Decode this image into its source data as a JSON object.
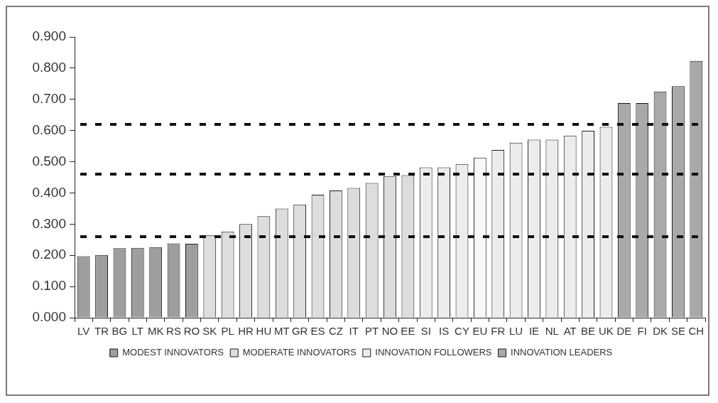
{
  "chart_data": {
    "type": "bar",
    "categories": [
      "LV",
      "TR",
      "BG",
      "LT",
      "MK",
      "RS",
      "RO",
      "SK",
      "PL",
      "HR",
      "HU",
      "MT",
      "GR",
      "ES",
      "CZ",
      "IT",
      "PT",
      "NO",
      "EE",
      "SI",
      "IS",
      "CY",
      "EU",
      "FR",
      "LU",
      "IE",
      "NL",
      "AT",
      "BE",
      "UK",
      "DE",
      "FI",
      "DK",
      "SE",
      "CH"
    ],
    "series": [
      {
        "name": "MODEST INNOVATORS",
        "color": "#9e9e9e",
        "values": [
          0.197,
          0.201,
          0.223,
          0.224,
          0.226,
          0.238,
          0.237,
          null,
          null,
          null,
          null,
          null,
          null,
          null,
          null,
          null,
          null,
          null,
          null,
          null,
          null,
          null,
          null,
          null,
          null,
          null,
          null,
          null,
          null,
          null,
          null,
          null,
          null,
          null,
          null
        ]
      },
      {
        "name": "MODERATE INNOVATORS",
        "color": "#dddddd",
        "values": [
          null,
          null,
          null,
          null,
          null,
          null,
          null,
          0.265,
          0.276,
          0.3,
          0.325,
          0.35,
          0.363,
          0.394,
          0.408,
          0.416,
          0.432,
          0.454,
          0.457,
          null,
          null,
          null,
          null,
          null,
          null,
          null,
          null,
          null,
          null,
          null,
          null,
          null,
          null,
          null,
          null
        ]
      },
      {
        "name": "INNOVATION FOLLOWERS",
        "color": "#ececec",
        "values": [
          null,
          null,
          null,
          null,
          null,
          null,
          null,
          null,
          null,
          null,
          null,
          null,
          null,
          null,
          null,
          null,
          null,
          null,
          null,
          0.482,
          0.482,
          0.493,
          null,
          0.538,
          0.561,
          0.571,
          0.571,
          0.584,
          0.599,
          0.612,
          null,
          null,
          null,
          null,
          null
        ]
      },
      {
        "name": "INNOVATION LEADERS",
        "color": "#a9a9a9",
        "values": [
          null,
          null,
          null,
          null,
          null,
          null,
          null,
          null,
          null,
          null,
          null,
          null,
          null,
          null,
          null,
          null,
          null,
          null,
          null,
          null,
          null,
          null,
          null,
          null,
          null,
          null,
          null,
          null,
          null,
          null,
          0.688,
          0.688,
          0.725,
          0.742,
          0.823
        ]
      },
      {
        "color": "#f7f7f7",
        "values": [
          null,
          null,
          null,
          null,
          null,
          null,
          null,
          null,
          null,
          null,
          null,
          null,
          null,
          null,
          null,
          null,
          null,
          null,
          null,
          null,
          null,
          null,
          0.513,
          null,
          null,
          null,
          null,
          null,
          null,
          null,
          null,
          null,
          null,
          null,
          null
        ]
      }
    ],
    "ylim": [
      0,
      0.9
    ],
    "yticks": [
      {
        "value": 0,
        "label": "0.000"
      },
      {
        "value": 0.1,
        "label": "0.100"
      },
      {
        "value": 0.2,
        "label": "0.200"
      },
      {
        "value": 0.3,
        "label": "0.300"
      },
      {
        "value": 0.4,
        "label": "0.400"
      },
      {
        "value": 0.5,
        "label": "0.500"
      },
      {
        "value": 0.6,
        "label": "0.600"
      },
      {
        "value": 0.7,
        "label": "0.700"
      },
      {
        "value": 0.8,
        "label": "0.800"
      },
      {
        "value": 0.9,
        "label": "0.900"
      }
    ],
    "ref_lines": [
      {
        "axis": "y",
        "value": 0.62,
        "color": "#111111",
        "line_style": "dashed"
      },
      {
        "axis": "y",
        "value": 0.46,
        "color": "#111111",
        "line_style": "dashed"
      },
      {
        "axis": "y",
        "value": 0.26,
        "color": "#111111",
        "line_style": "dashed"
      }
    ],
    "legend": "bottom",
    "grid": false
  }
}
